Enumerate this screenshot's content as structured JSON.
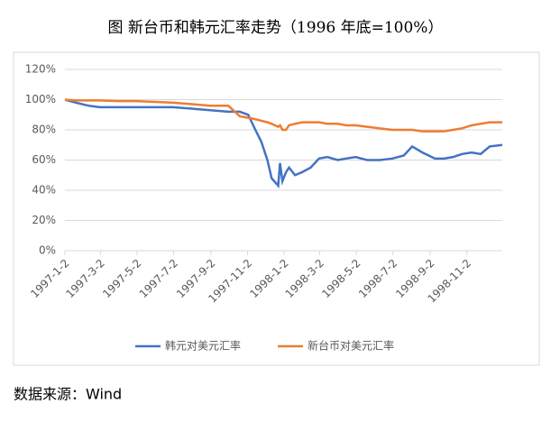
{
  "chart_data": {
    "type": "line",
    "title": "图  新台币和韩元汇率走势（1996 年底=100%）",
    "source": "数据来源：Wind",
    "x": [
      "1997-1-2",
      "1997-1-20",
      "1997-2-10",
      "1997-3-1",
      "1997-4-1",
      "1997-5-1",
      "1997-6-1",
      "1997-7-1",
      "1997-8-1",
      "1997-9-1",
      "1997-10-1",
      "1997-10-20",
      "1997-11-3",
      "1997-11-15",
      "1997-11-25",
      "1997-12-5",
      "1997-12-12",
      "1997-12-23",
      "1997-12-26",
      "1997-12-30",
      "1998-1-5",
      "1998-1-10",
      "1998-1-20",
      "1998-2-1",
      "1998-2-15",
      "1998-3-1",
      "1998-3-15",
      "1998-4-1",
      "1998-4-15",
      "1998-5-1",
      "1998-5-20",
      "1998-6-10",
      "1998-7-1",
      "1998-7-20",
      "1998-8-3",
      "1998-8-20",
      "1998-9-10",
      "1998-9-25",
      "1998-10-10",
      "1998-10-25",
      "1998-11-10",
      "1998-11-25",
      "1998-12-10",
      "1998-12-31"
    ],
    "series": [
      {
        "name": "韩元对美元汇率",
        "color": "#4472c4",
        "values": [
          100,
          98,
          96,
          95,
          95,
          95,
          95,
          95,
          94,
          93,
          92,
          92,
          90,
          80,
          72,
          60,
          48,
          43,
          58,
          46,
          52,
          55,
          50,
          52,
          55,
          61,
          62,
          60,
          61,
          62,
          60,
          60,
          61,
          63,
          69,
          65,
          61,
          61,
          62,
          64,
          65,
          64,
          69,
          70
        ]
      },
      {
        "name": "新台币对美元汇率",
        "color": "#ed7d31",
        "values": [
          100,
          99.5,
          99.5,
          99.5,
          99,
          99,
          98.5,
          98,
          97,
          96,
          96,
          89,
          88,
          87,
          86,
          85,
          84,
          82,
          83,
          80,
          80,
          83,
          84,
          85,
          85,
          85,
          84,
          84,
          83,
          83,
          82,
          81,
          80,
          80,
          80,
          79,
          79,
          79,
          80,
          81,
          83,
          84,
          85,
          85
        ]
      }
    ],
    "xlim": [
      "1997-1-2",
      "1998-12-31"
    ],
    "xticks": [
      "1997-1-2",
      "1997-3-2",
      "1997-5-2",
      "1997-7-2",
      "1997-9-2",
      "1997-11-2",
      "1998-1-2",
      "1998-3-2",
      "1998-5-2",
      "1998-7-2",
      "1998-9-2",
      "1998-11-2"
    ],
    "ylim": [
      0,
      120
    ],
    "yticks": [
      {
        "value": 0,
        "label": "0%"
      },
      {
        "value": 20,
        "label": "20%"
      },
      {
        "value": 40,
        "label": "40%"
      },
      {
        "value": 60,
        "label": "60%"
      },
      {
        "value": 80,
        "label": "80%"
      },
      {
        "value": 100,
        "label": "100%"
      },
      {
        "value": 120,
        "label": "120%"
      }
    ],
    "grid": true,
    "legend": "bottom"
  }
}
